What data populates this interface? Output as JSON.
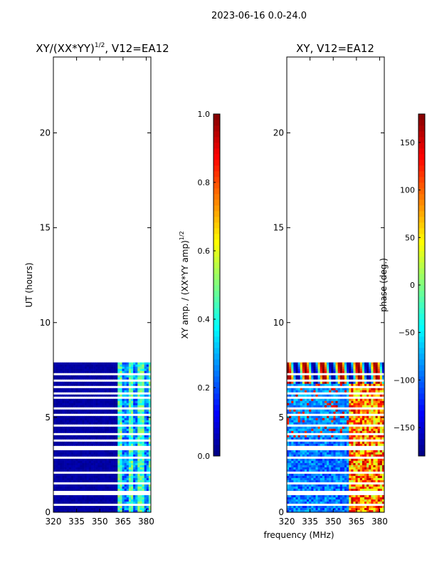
{
  "header": {
    "date_range": "2023-06-16 0.0-24.0"
  },
  "shared": {
    "xlabel": "frequency (MHz)"
  },
  "chart_data": [
    {
      "type": "heatmap",
      "title": "XY/(XX*YY)",
      "title_exponent": "1/2",
      "title_suffix": ", V12=EA12",
      "ylabel": "UT (hours)",
      "xlim": [
        320,
        383
      ],
      "ylim": [
        0,
        24
      ],
      "xticks": [
        "320",
        "335",
        "350",
        "365",
        "380"
      ],
      "xtick_values": [
        320,
        335,
        350,
        365,
        380
      ],
      "yticks": [
        "0",
        "5",
        "10",
        "15",
        "20"
      ],
      "ytick_values": [
        0,
        5,
        10,
        15,
        20
      ],
      "data_extent_hours": [
        0,
        7.9
      ],
      "colorbar": {
        "label": "XY amp. / (XX*YY amp)",
        "label_exponent": "1/2",
        "range": [
          0.0,
          1.0
        ],
        "ticks": [
          "0.0",
          "0.2",
          "0.4",
          "0.6",
          "0.8",
          "1.0"
        ],
        "tick_values": [
          0.0,
          0.2,
          0.4,
          0.6,
          0.8,
          1.0
        ]
      }
    },
    {
      "type": "heatmap",
      "title": "XY, V12=EA12",
      "xlim": [
        320,
        383
      ],
      "ylim": [
        0,
        24
      ],
      "xticks": [
        "320",
        "335",
        "350",
        "365",
        "380"
      ],
      "xtick_values": [
        320,
        335,
        350,
        365,
        380
      ],
      "yticks": [
        "0",
        "5",
        "10",
        "15",
        "20"
      ],
      "ytick_values": [
        0,
        5,
        10,
        15,
        20
      ],
      "data_extent_hours": [
        0,
        7.9
      ],
      "colorbar": {
        "label": "phase (deg.)",
        "range": [
          -180,
          180
        ],
        "ticks": [
          "−150",
          "−100",
          "−50",
          "0",
          "50",
          "100",
          "150"
        ],
        "tick_values": [
          -150,
          -100,
          -50,
          0,
          50,
          100,
          150
        ]
      }
    }
  ]
}
